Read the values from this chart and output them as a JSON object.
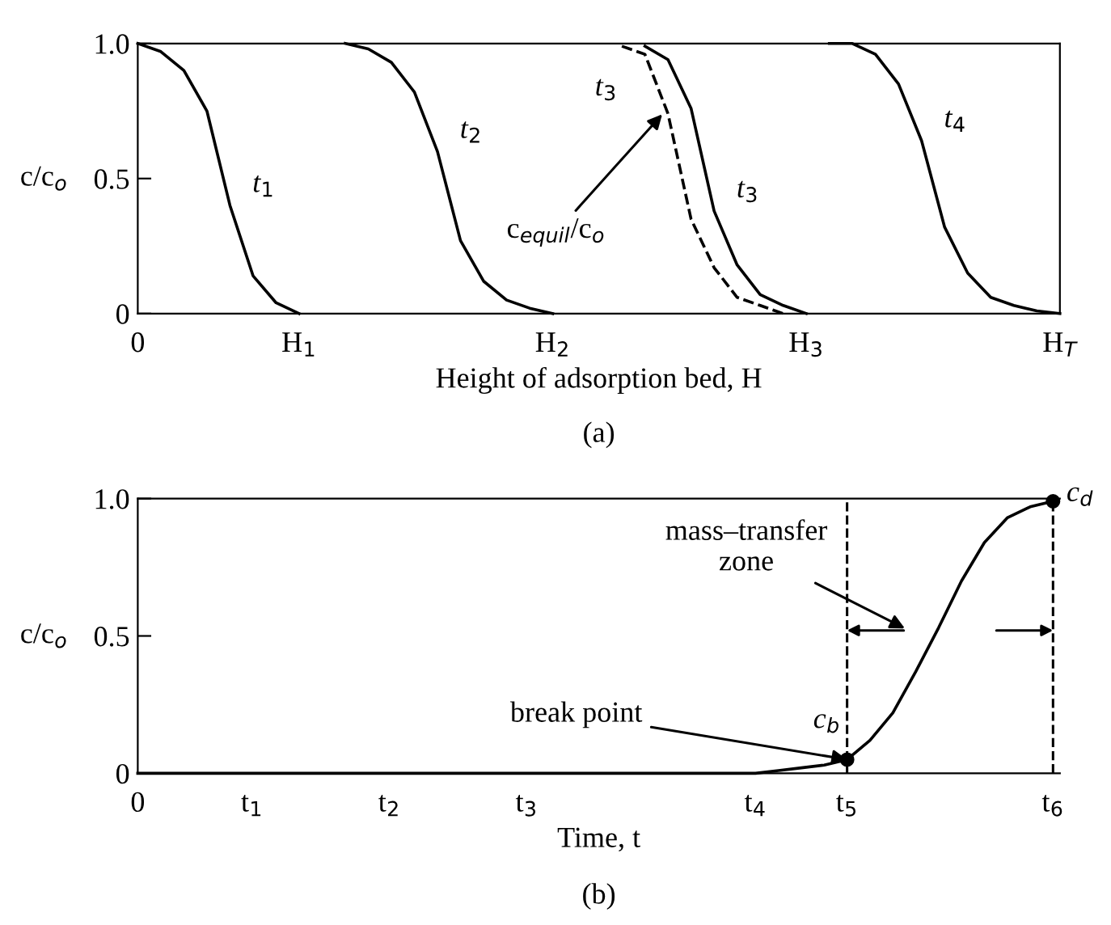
{
  "chart_data": [
    {
      "type": "line",
      "xlabel": "Height of adsorption bed, H",
      "ylabel": "c/c$_{o}$",
      "ylim": [
        0,
        1
      ],
      "categories": [
        "0",
        null,
        null,
        null,
        null,
        null,
        null,
        "H$_{1}$",
        null,
        null,
        null,
        null,
        null,
        null,
        null,
        null,
        null,
        null,
        "H$_{2}$",
        null,
        null,
        null,
        null,
        null,
        null,
        null,
        null,
        null,
        null,
        "H$_{3}$",
        null,
        null,
        null,
        null,
        null,
        null,
        null,
        null,
        null,
        null,
        "H$_{T}$"
      ],
      "yticks": [
        0,
        0.5,
        {
          "value": 1,
          "label": "1.0"
        }
      ],
      "grid": false,
      "marker": "none",
      "series": [
        {
          "name": "t$_{1}$",
          "color": "#000000",
          "line_style": "solid",
          "values": [
            1,
            0.97,
            0.9,
            0.75,
            0.4,
            0.14,
            0.04,
            0,
            null,
            null,
            null,
            null,
            null,
            null,
            null,
            null,
            null,
            null,
            null,
            null,
            null,
            null,
            null,
            null,
            null,
            null,
            null,
            null,
            null,
            null,
            null,
            null,
            null,
            null,
            null,
            null,
            null,
            null,
            null,
            null,
            null
          ]
        },
        {
          "name": "t$_{2}$",
          "color": "#000000",
          "line_style": "solid",
          "values": [
            null,
            null,
            null,
            null,
            null,
            null,
            null,
            null,
            null,
            1,
            0.98,
            0.93,
            0.82,
            0.6,
            0.27,
            0.12,
            0.05,
            0.02,
            0,
            null,
            null,
            null,
            null,
            null,
            null,
            null,
            null,
            null,
            null,
            null,
            null,
            null,
            null,
            null,
            null,
            null,
            null,
            null,
            null,
            null,
            null
          ]
        },
        {
          "name": "t$_{3}$",
          "color": "#000000",
          "line_style": "dashed",
          "values": [
            null,
            null,
            null,
            null,
            null,
            null,
            null,
            null,
            null,
            null,
            null,
            null,
            null,
            null,
            null,
            null,
            null,
            null,
            null,
            null,
            null,
            0.99,
            0.96,
            0.74,
            0.35,
            0.17,
            0.06,
            0.03,
            0,
            null,
            null,
            null,
            null,
            null,
            null,
            null,
            null,
            null,
            null,
            null,
            null
          ]
        },
        {
          "name": "t$_{3}$",
          "color": "#000000",
          "line_style": "solid",
          "values": [
            null,
            null,
            null,
            null,
            null,
            null,
            null,
            null,
            null,
            null,
            null,
            null,
            null,
            null,
            null,
            null,
            null,
            null,
            null,
            null,
            null,
            null,
            0.99,
            0.94,
            0.76,
            0.38,
            0.18,
            0.07,
            0.03,
            0,
            null,
            null,
            null,
            null,
            null,
            null,
            null,
            null,
            null,
            null,
            null
          ]
        },
        {
          "name": "t$_{4}$",
          "color": "#000000",
          "line_style": "solid",
          "values": [
            null,
            null,
            null,
            null,
            null,
            null,
            null,
            null,
            null,
            null,
            null,
            null,
            null,
            null,
            null,
            null,
            null,
            null,
            null,
            null,
            null,
            null,
            null,
            null,
            null,
            null,
            null,
            null,
            null,
            null,
            1,
            1,
            0.96,
            0.85,
            0.64,
            0.32,
            0.15,
            0.06,
            0.03,
            0.01,
            0
          ]
        }
      ],
      "annotations": [
        "c$_{equil}$/c$_{o}$",
        "(a)"
      ]
    },
    {
      "type": "line",
      "xlabel": "Time, t",
      "ylabel": "c/c$_{o}$",
      "ylim": [
        0,
        1
      ],
      "categories": [
        "0",
        null,
        null,
        null,
        null,
        "t$_{1}$",
        null,
        null,
        null,
        null,
        null,
        "t$_{2}$",
        null,
        null,
        null,
        null,
        null,
        "t$_{3}$",
        null,
        null,
        null,
        null,
        null,
        null,
        null,
        null,
        null,
        "t$_{4}$",
        null,
        null,
        null,
        "t$_{5}$",
        null,
        null,
        null,
        null,
        null,
        null,
        null,
        null,
        "t$_{6}$"
      ],
      "yticks": [
        0,
        0.5,
        {
          "value": 1,
          "label": "1.0"
        }
      ],
      "grid": false,
      "series": [
        {
          "type": "line",
          "color": "#000000",
          "marker": "none",
          "line_style": "solid",
          "values": [
            0,
            0,
            0,
            0,
            0,
            0,
            0,
            0,
            0,
            0,
            0,
            0,
            0,
            0,
            0,
            0,
            0,
            0,
            0,
            0,
            0,
            0,
            0,
            0,
            0,
            0,
            0,
            0,
            0.01,
            0.02,
            0.03,
            0.05,
            0.12,
            0.22,
            0.37,
            0.53,
            0.7,
            0.84,
            0.93,
            0.97,
            0.99
          ]
        },
        {
          "type": "scatter",
          "name": "c$_{b}$",
          "color": "#000000",
          "marker": "circle",
          "values": [
            null,
            null,
            null,
            null,
            null,
            null,
            null,
            null,
            null,
            null,
            null,
            null,
            null,
            null,
            null,
            null,
            null,
            null,
            null,
            null,
            null,
            null,
            null,
            null,
            null,
            null,
            null,
            null,
            null,
            null,
            null,
            0.05,
            null,
            null,
            null,
            null,
            null,
            null,
            null,
            null,
            null
          ]
        },
        {
          "type": "scatter",
          "name": "c$_{d}$",
          "color": "#000000",
          "marker": "circle",
          "values": [
            null,
            null,
            null,
            null,
            null,
            null,
            null,
            null,
            null,
            null,
            null,
            null,
            null,
            null,
            null,
            null,
            null,
            null,
            null,
            null,
            null,
            null,
            null,
            null,
            null,
            null,
            null,
            null,
            null,
            null,
            null,
            null,
            null,
            null,
            null,
            null,
            null,
            null,
            null,
            null,
            0.99
          ]
        }
      ],
      "ref_lines": [
        {
          "axis": "x",
          "value": "t$_{5}$",
          "color": "#000000",
          "line_style": "dashed"
        },
        {
          "axis": "x",
          "value": "t$_{6}$",
          "color": "#000000",
          "line_style": "dashed"
        }
      ],
      "annotations": [
        "mass–transfer\nzone",
        {
          "text": "break point",
          "x": "t$_{5}$",
          "y": 0.05
        },
        "(b)"
      ]
    }
  ]
}
